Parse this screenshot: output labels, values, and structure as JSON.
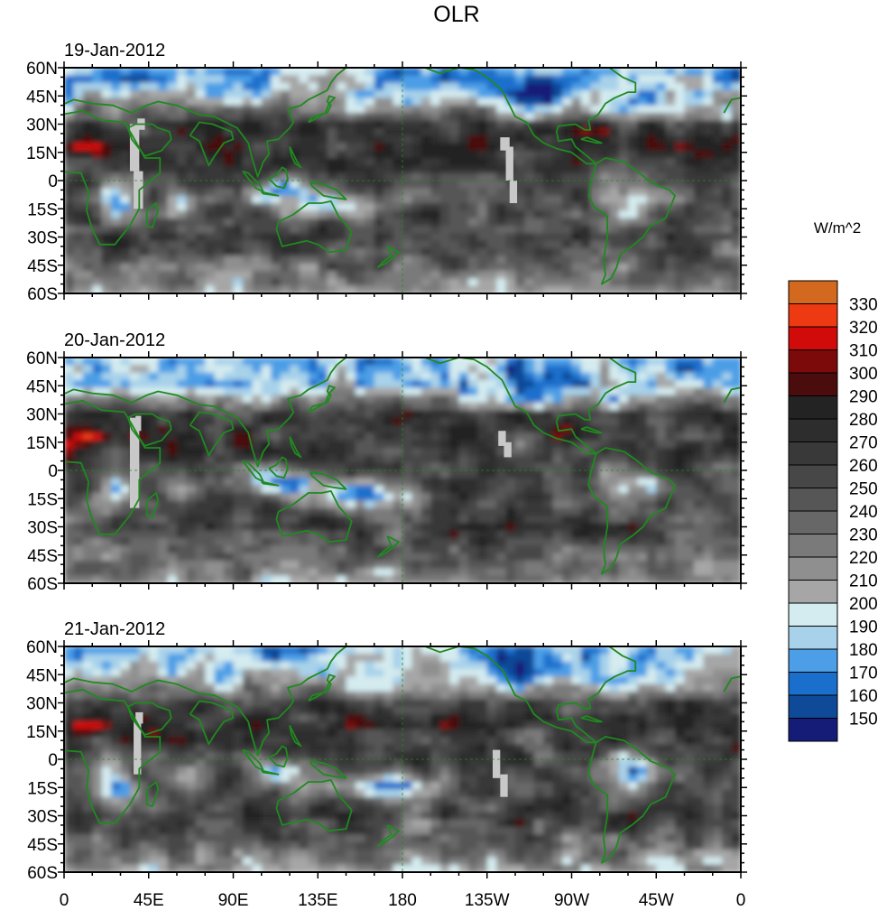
{
  "chart_data": {
    "type": "heatmap",
    "title": "OLR",
    "units": "W/m^2",
    "colorbar": {
      "levels": [
        150,
        160,
        170,
        180,
        190,
        200,
        210,
        220,
        230,
        240,
        250,
        260,
        270,
        280,
        290,
        300,
        310,
        320,
        330
      ],
      "colors": [
        "#141c78",
        "#0f4a98",
        "#1a6fcc",
        "#4c9ee6",
        "#a8d2ea",
        "#d4ebef",
        "#a6a6a6",
        "#8f8f8f",
        "#7a7a7a",
        "#676767",
        "#565656",
        "#474747",
        "#393939",
        "#2d2d2d",
        "#232323",
        "#4a0c0c",
        "#7d0a0a",
        "#d10a0a",
        "#ee3a12",
        "#d2691e"
      ]
    },
    "x_ticks": [
      "0",
      "45E",
      "90E",
      "135E",
      "180",
      "135W",
      "90W",
      "45W",
      "0"
    ],
    "y_ticks": [
      "60N",
      "45N",
      "30N",
      "15N",
      "0",
      "15S",
      "30S",
      "45S",
      "60S"
    ],
    "lon_range": [
      0,
      360
    ],
    "lat_range": [
      -60,
      60
    ],
    "panels": [
      {
        "date": "19-Jan-2012"
      },
      {
        "date": "20-Jan-2012"
      },
      {
        "date": "21-Jan-2012"
      }
    ]
  }
}
